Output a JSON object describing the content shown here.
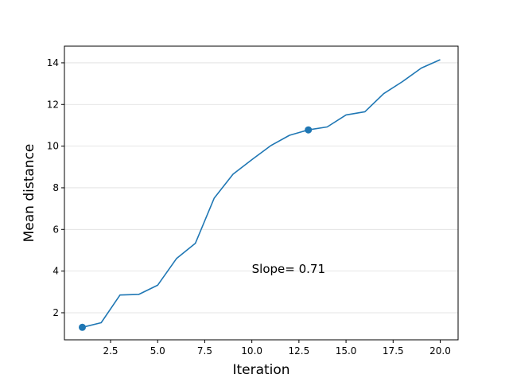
{
  "chart_data": {
    "type": "line",
    "title": "",
    "xlabel": "Iteration",
    "ylabel": "Mean distance",
    "xlim": [
      0.05,
      20.95
    ],
    "ylim": [
      0.7,
      14.8
    ],
    "xticks": [
      2.5,
      5.0,
      7.5,
      10.0,
      12.5,
      15.0,
      17.5,
      20.0
    ],
    "xtick_labels": [
      "2.5",
      "5.0",
      "7.5",
      "10.0",
      "12.5",
      "15.0",
      "17.5",
      "20.0"
    ],
    "yticks": [
      2,
      4,
      6,
      8,
      10,
      12,
      14
    ],
    "ytick_labels": [
      "2",
      "4",
      "6",
      "8",
      "10",
      "12",
      "14"
    ],
    "grid": "horizontal",
    "series": [
      {
        "name": "mean distance",
        "color": "#1f77b4",
        "x": [
          1,
          2,
          3,
          4,
          5,
          6,
          7,
          8,
          9,
          10,
          11,
          12,
          13,
          14,
          15,
          16,
          17,
          18,
          19,
          20
        ],
        "y": [
          1.3,
          1.52,
          2.85,
          2.88,
          3.32,
          4.6,
          5.33,
          7.5,
          8.65,
          9.35,
          10.02,
          10.52,
          10.78,
          10.92,
          11.5,
          11.65,
          12.52,
          13.1,
          13.75,
          14.15
        ]
      }
    ],
    "markers": [
      {
        "x": 1,
        "y": 1.3
      },
      {
        "x": 13,
        "y": 10.78
      }
    ],
    "annotation": {
      "text": "Slope= 0.71",
      "x": 10.0,
      "y": 4.1
    }
  }
}
